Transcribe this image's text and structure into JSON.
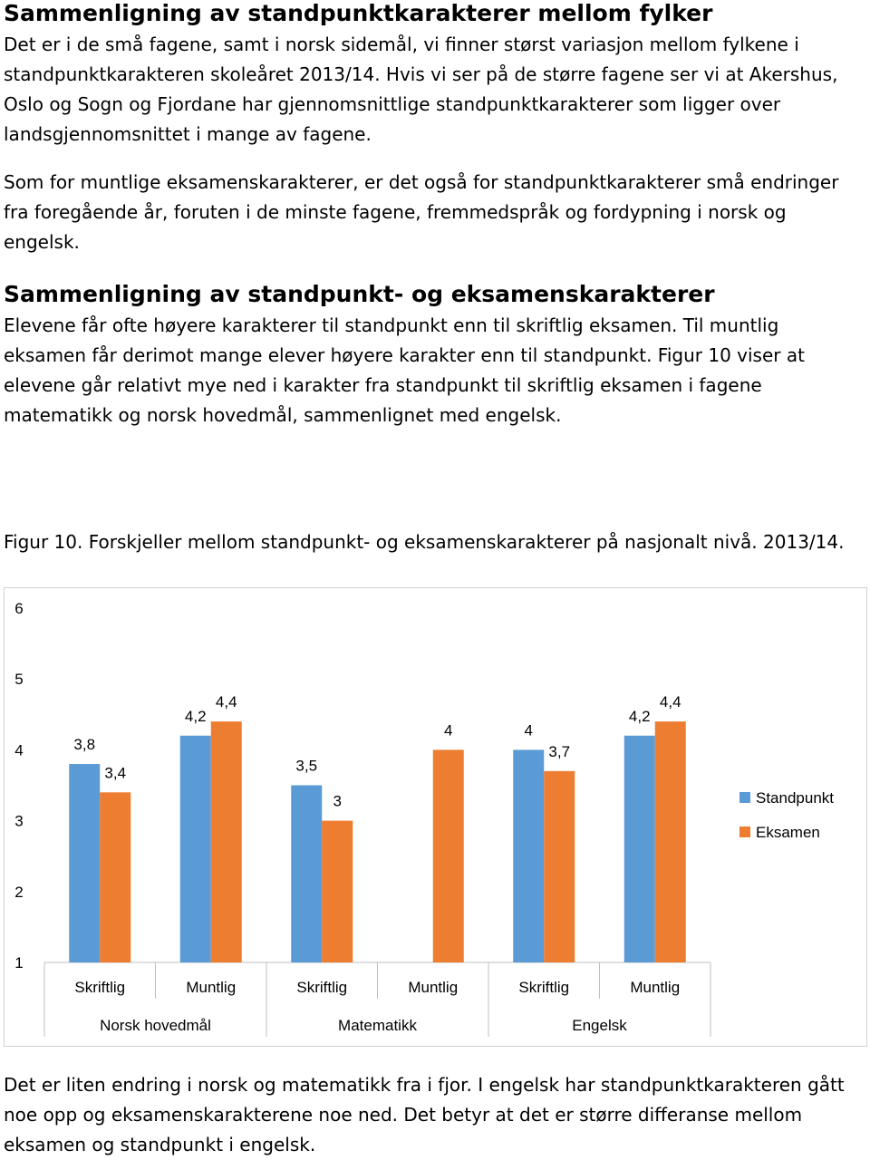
{
  "sections": [
    {
      "heading": "Sammenligning av standpunktkarakterer mellom fylker",
      "paragraphs": [
        "Det er i de små fagene, samt i norsk sidemål, vi finner størst variasjon mellom fylkene i standpunktkarakteren skoleåret 2013/14. Hvis vi ser på de større fagene ser vi at Akershus, Oslo og Sogn og Fjordane har gjennomsnittlige standpunktkarakterer som ligger over landsgjennomsnittet i mange av fagene.",
        "Som for muntlige eksamenskarakterer, er det også for standpunktkarakterer små endringer fra foregående år, foruten i de minste fagene, fremmedspråk og fordypning i norsk og engelsk."
      ]
    },
    {
      "heading": "Sammenligning av standpunkt- og eksamenskarakterer",
      "paragraphs": [
        "Elevene får ofte høyere karakterer til standpunkt enn til skriftlig eksamen. Til muntlig eksamen får derimot mange elever høyere karakter enn til standpunkt. Figur 10 viser at elevene går relativt mye ned i karakter fra standpunkt til skriftlig eksamen i fagene matematikk og norsk hovedmål, sammenlignet med engelsk."
      ]
    }
  ],
  "figure": {
    "caption": "Figur 10. Forskjeller mellom standpunkt- og eksamenskarakterer på nasjonalt nivå. 2013/14."
  },
  "chart_data": {
    "type": "bar",
    "categories": [
      "Skriftlig",
      "Muntlig",
      "Skriftlig",
      "Muntlig",
      "Skriftlig",
      "Muntlig"
    ],
    "groups": [
      "Norsk hovedmål",
      "Matematikk",
      "Engelsk"
    ],
    "series": [
      {
        "name": "Standpunkt",
        "color": "#5b9bd5",
        "values": [
          3.8,
          4.2,
          3.5,
          null,
          4,
          4.2
        ],
        "value_labels": [
          "3,8",
          "4,2",
          "3,5",
          null,
          "4",
          "4,2"
        ]
      },
      {
        "name": "Eksamen",
        "color": "#ed7d31",
        "values": [
          3.4,
          4.4,
          3,
          4,
          3.7,
          4.4
        ],
        "value_labels": [
          "3,4",
          "4,4",
          "3",
          "4",
          "3,7",
          "4,4"
        ]
      }
    ],
    "ylim": [
      1,
      6
    ],
    "yticks": [
      1,
      2,
      3,
      4,
      5,
      6
    ],
    "grid": false,
    "legend": "right"
  },
  "closing": {
    "paragraphs": [
      "Det er liten endring i norsk og matematikk fra i fjor. I engelsk har standpunktkarakteren gått noe opp og eksamenskarakterene noe ned. Det betyr at det er større differanse mellom eksamen og standpunkt i engelsk."
    ]
  }
}
